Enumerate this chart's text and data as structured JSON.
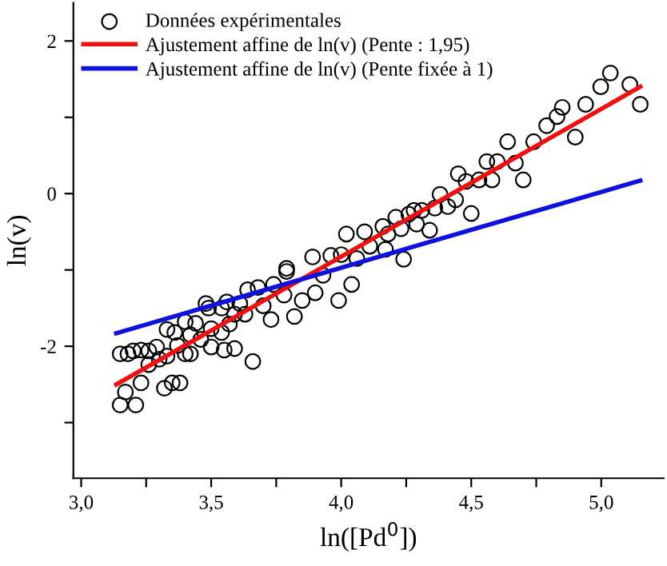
{
  "chart_data": {
    "type": "scatter",
    "xlabel": "ln([Pd$^{0}$])",
    "ylabel": "ln(v)",
    "xlim": [
      2.97,
      5.24
    ],
    "ylim": [
      -3.73,
      2.5
    ],
    "xticks": [
      {
        "value": 3.0,
        "label": "3,0"
      },
      {
        "value": 3.25,
        "label": null
      },
      {
        "value": 3.5,
        "label": "3,5"
      },
      {
        "value": 3.75,
        "label": null
      },
      {
        "value": 4.0,
        "label": "4,0"
      },
      {
        "value": 4.25,
        "label": null
      },
      {
        "value": 4.5,
        "label": "4,5"
      },
      {
        "value": 4.75,
        "label": null
      },
      {
        "value": 5.0,
        "label": "5,0"
      }
    ],
    "yticks": [
      {
        "value": -3,
        "label": null
      },
      -2,
      {
        "value": -1,
        "label": null
      },
      0,
      {
        "value": 1,
        "label": null
      },
      2
    ],
    "grid": false,
    "legend": "top left",
    "series": [
      {
        "name": "Données expérimentales",
        "marker": "circle",
        "color": "#000000",
        "x": [
          5.035,
          4.998,
          5.11,
          5.15,
          4.94,
          4.85,
          4.83,
          4.79,
          4.9,
          4.74,
          4.64,
          4.56,
          4.6,
          4.67,
          4.7,
          4.58,
          4.53,
          4.45,
          4.48,
          4.38,
          4.44,
          4.41,
          4.5,
          4.36,
          4.31,
          4.26,
          4.28,
          4.21,
          4.29,
          4.34,
          4.16,
          4.23,
          4.18,
          4.09,
          4.02,
          4.11,
          4.17,
          4.24,
          4.06,
          3.89,
          3.96,
          4.0,
          3.79,
          3.99,
          4.04,
          3.93,
          3.9,
          3.85,
          3.79,
          3.78,
          3.82,
          3.74,
          3.73,
          3.68,
          3.64,
          3.7,
          3.63,
          3.56,
          3.54,
          3.59,
          3.49,
          3.44,
          3.4,
          3.33,
          3.36,
          3.42,
          3.5,
          3.54,
          3.57,
          3.5,
          3.55,
          3.59,
          3.46,
          3.42,
          3.4,
          3.37,
          3.33,
          3.29,
          3.26,
          3.23,
          3.2,
          3.18,
          3.15,
          3.26,
          3.3,
          3.66,
          3.23,
          3.32,
          3.35,
          3.38,
          3.17,
          3.15,
          3.21,
          3.48,
          3.61
        ],
        "values": [
          1.58,
          1.4,
          1.43,
          1.17,
          1.17,
          1.13,
          1.01,
          0.89,
          0.74,
          0.68,
          0.68,
          0.42,
          0.42,
          0.4,
          0.18,
          0.18,
          0.18,
          0.26,
          0.16,
          -0.01,
          -0.08,
          -0.17,
          -0.26,
          -0.19,
          -0.22,
          -0.27,
          -0.22,
          -0.31,
          -0.4,
          -0.48,
          -0.43,
          -0.46,
          -0.53,
          -0.5,
          -0.53,
          -0.69,
          -0.73,
          -0.86,
          -0.85,
          -0.83,
          -0.81,
          -0.8,
          -0.98,
          -1.4,
          -1.19,
          -1.07,
          -1.3,
          -1.4,
          -1.02,
          -1.33,
          -1.61,
          -1.19,
          -1.65,
          -1.23,
          -1.26,
          -1.47,
          -1.58,
          -1.42,
          -1.5,
          -1.58,
          -1.5,
          -1.7,
          -1.68,
          -1.78,
          -1.82,
          -1.85,
          -1.77,
          -1.82,
          -1.71,
          -2.01,
          -2.05,
          -2.03,
          -1.91,
          -2.1,
          -2.1,
          -1.99,
          -2.13,
          -2.01,
          -2.06,
          -2.05,
          -2.06,
          -2.1,
          -2.1,
          -2.24,
          -2.17,
          -2.2,
          -2.48,
          -2.55,
          -2.48,
          -2.48,
          -2.6,
          -2.77,
          -2.77,
          -1.44,
          -1.44
        ]
      },
      {
        "name": "Ajustement affine de ln(v) (Pente : 1,95)",
        "type": "line",
        "line_style": "solid",
        "color": "#ee1111",
        "x": [
          3.135,
          5.15
        ],
        "values": [
          -2.5,
          1.4
        ]
      },
      {
        "name": "Ajustement affine de ln(v) (Pente fixée à 1)",
        "type": "line",
        "line_style": "solid",
        "color": "#1111dd",
        "x": [
          3.135,
          5.15
        ],
        "values": [
          -1.83,
          0.17
        ]
      }
    ]
  }
}
